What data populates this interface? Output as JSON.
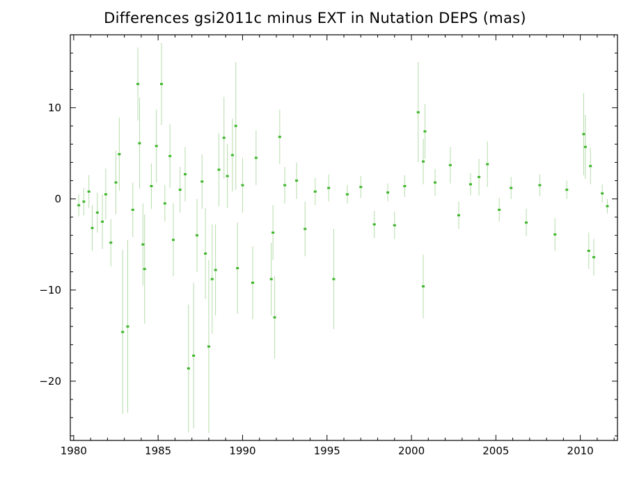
{
  "chart_data": {
    "type": "scatter",
    "title": "Differences gsi2011c minus EXT in Nutation DEPS (mas)",
    "xlabel": "",
    "ylabel": "",
    "xlim": [
      1979.8,
      2012.2
    ],
    "ylim": [
      -26.5,
      18
    ],
    "xticks": [
      1980,
      1985,
      1990,
      1995,
      2000,
      2005,
      2010
    ],
    "xtick_labels": [
      "1980",
      "1985",
      "1990",
      "1995",
      "2000",
      "2005",
      "2010"
    ],
    "yticks": [
      10,
      0,
      -10,
      -20
    ],
    "ytick_labels": [
      "10",
      "0",
      "−10",
      "−20"
    ],
    "grid": false,
    "legend": "none",
    "colors": {
      "points": "#3cb528",
      "errorbars": "#b4dcaa",
      "axes": "#000000"
    },
    "note_series": "dense cloud of points near 0 with larger scatter before 1990",
    "points": [
      {
        "x": 1980.3,
        "y": -0.7,
        "err": 1.2
      },
      {
        "x": 1980.6,
        "y": -0.3,
        "err": 1.5
      },
      {
        "x": 1980.9,
        "y": 0.8,
        "err": 1.8
      },
      {
        "x": 1981.1,
        "y": -3.2,
        "err": 2.5
      },
      {
        "x": 1981.4,
        "y": -1.5,
        "err": 2.2
      },
      {
        "x": 1981.7,
        "y": -2.5,
        "err": 3.0
      },
      {
        "x": 1981.9,
        "y": 0.5,
        "err": 2.8
      },
      {
        "x": 1982.2,
        "y": -4.8,
        "err": 2.6
      },
      {
        "x": 1982.5,
        "y": 1.8,
        "err": 3.5
      },
      {
        "x": 1982.7,
        "y": 4.9,
        "err": 4.0
      },
      {
        "x": 1982.9,
        "y": -14.6,
        "err": 9.0
      },
      {
        "x": 1983.2,
        "y": -14.0,
        "err": 9.5
      },
      {
        "x": 1983.5,
        "y": -1.2,
        "err": 3.0
      },
      {
        "x": 1983.8,
        "y": 12.6,
        "err": 4.0
      },
      {
        "x": 1983.9,
        "y": 6.1,
        "err": 5.0
      },
      {
        "x": 1984.1,
        "y": -5.0,
        "err": 4.5
      },
      {
        "x": 1984.2,
        "y": -7.7,
        "err": 6.0
      },
      {
        "x": 1984.6,
        "y": 1.4,
        "err": 2.5
      },
      {
        "x": 1984.9,
        "y": 5.8,
        "err": 4.0
      },
      {
        "x": 1985.2,
        "y": 12.6,
        "err": 4.5
      },
      {
        "x": 1985.4,
        "y": -0.5,
        "err": 2.0
      },
      {
        "x": 1985.7,
        "y": 4.7,
        "err": 3.5
      },
      {
        "x": 1985.9,
        "y": -4.5,
        "err": 4.0
      },
      {
        "x": 1986.3,
        "y": 1.0,
        "err": 2.5
      },
      {
        "x": 1986.6,
        "y": 2.7,
        "err": 3.0
      },
      {
        "x": 1986.8,
        "y": -18.6,
        "err": 7.0
      },
      {
        "x": 1987.1,
        "y": -17.2,
        "err": 8.0
      },
      {
        "x": 1987.3,
        "y": -4.0,
        "err": 4.0
      },
      {
        "x": 1987.6,
        "y": 1.9,
        "err": 3.0
      },
      {
        "x": 1987.8,
        "y": -6.0,
        "err": 5.0
      },
      {
        "x": 1988.0,
        "y": -16.2,
        "err": 9.5
      },
      {
        "x": 1988.2,
        "y": -8.8,
        "err": 6.0
      },
      {
        "x": 1988.4,
        "y": -7.8,
        "err": 5.0
      },
      {
        "x": 1988.6,
        "y": 3.2,
        "err": 4.0
      },
      {
        "x": 1988.9,
        "y": 6.7,
        "err": 4.5
      },
      {
        "x": 1989.1,
        "y": 2.5,
        "err": 3.5
      },
      {
        "x": 1989.4,
        "y": 4.8,
        "err": 4.0
      },
      {
        "x": 1989.6,
        "y": 8.0,
        "err": 7.0
      },
      {
        "x": 1989.7,
        "y": -7.6,
        "err": 5.0
      },
      {
        "x": 1990.0,
        "y": 1.5,
        "err": 3.0
      },
      {
        "x": 1990.6,
        "y": -9.2,
        "err": 4.0
      },
      {
        "x": 1990.8,
        "y": 4.5,
        "err": 3.0
      },
      {
        "x": 1991.7,
        "y": -8.8,
        "err": 4.0
      },
      {
        "x": 1991.8,
        "y": -3.7,
        "err": 3.0
      },
      {
        "x": 1991.9,
        "y": -13.0,
        "err": 4.5
      },
      {
        "x": 1992.2,
        "y": 6.8,
        "err": 3.0
      },
      {
        "x": 1992.5,
        "y": 1.5,
        "err": 2.0
      },
      {
        "x": 1993.2,
        "y": 2.0,
        "err": 2.0
      },
      {
        "x": 1993.7,
        "y": -3.3,
        "err": 3.0
      },
      {
        "x": 1994.3,
        "y": 0.8,
        "err": 1.5
      },
      {
        "x": 1995.1,
        "y": 1.2,
        "err": 1.5
      },
      {
        "x": 1995.4,
        "y": -8.8,
        "err": 5.5
      },
      {
        "x": 1996.2,
        "y": 0.5,
        "err": 1.0
      },
      {
        "x": 1997.0,
        "y": 1.3,
        "err": 1.2
      },
      {
        "x": 1997.8,
        "y": -2.8,
        "err": 1.5
      },
      {
        "x": 1998.6,
        "y": 0.7,
        "err": 1.0
      },
      {
        "x": 1999.0,
        "y": -2.9,
        "err": 1.5
      },
      {
        "x": 1999.6,
        "y": 1.4,
        "err": 1.2
      },
      {
        "x": 2000.4,
        "y": 9.5,
        "err": 5.5
      },
      {
        "x": 2000.7,
        "y": -9.6,
        "err": 3.5
      },
      {
        "x": 2000.8,
        "y": 7.4,
        "err": 3.0
      },
      {
        "x": 2000.7,
        "y": 4.1,
        "err": 2.5
      },
      {
        "x": 2001.4,
        "y": 1.8,
        "err": 1.5
      },
      {
        "x": 2002.3,
        "y": 3.7,
        "err": 2.0
      },
      {
        "x": 2002.8,
        "y": -1.8,
        "err": 1.5
      },
      {
        "x": 2003.5,
        "y": 1.6,
        "err": 1.2
      },
      {
        "x": 2004.0,
        "y": 2.4,
        "err": 2.0
      },
      {
        "x": 2004.5,
        "y": 3.8,
        "err": 2.5
      },
      {
        "x": 2005.2,
        "y": -1.2,
        "err": 1.3
      },
      {
        "x": 2005.9,
        "y": 1.2,
        "err": 1.2
      },
      {
        "x": 2006.8,
        "y": -2.6,
        "err": 1.5
      },
      {
        "x": 2007.6,
        "y": 1.5,
        "err": 1.2
      },
      {
        "x": 2008.5,
        "y": -3.9,
        "err": 1.8
      },
      {
        "x": 2009.2,
        "y": 1.0,
        "err": 1.0
      },
      {
        "x": 2010.2,
        "y": 7.1,
        "err": 4.5
      },
      {
        "x": 2010.3,
        "y": 5.7,
        "err": 3.5
      },
      {
        "x": 2010.5,
        "y": -5.7,
        "err": 2.0
      },
      {
        "x": 2010.6,
        "y": 3.6,
        "err": 2.0
      },
      {
        "x": 2010.8,
        "y": -6.4,
        "err": 2.0
      },
      {
        "x": 2011.3,
        "y": 0.6,
        "err": 1.0
      },
      {
        "x": 2011.6,
        "y": -0.8,
        "err": 0.8
      }
    ]
  }
}
